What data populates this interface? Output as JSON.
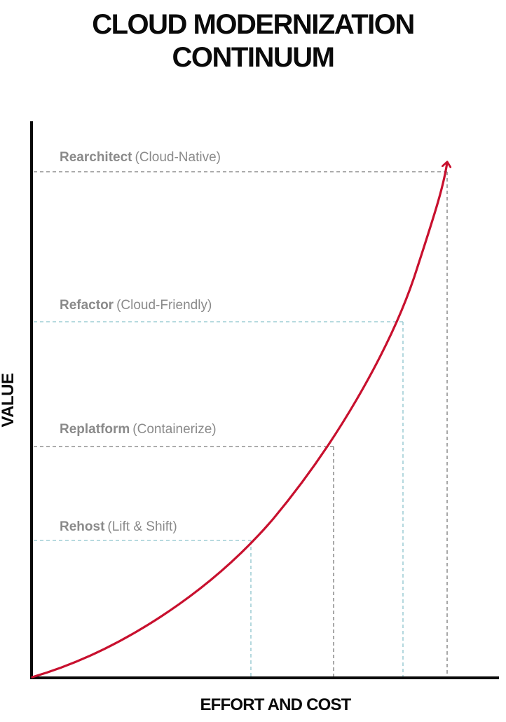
{
  "title": {
    "line1": "CLOUD MODERNIZATION",
    "line2": "CONTINUUM"
  },
  "axes": {
    "x_label": "EFFORT AND COST",
    "y_label": "VALUE"
  },
  "levels": [
    {
      "name": "Rehost",
      "description": "(Lift & Shift)",
      "guide_color": "#8cc4cc"
    },
    {
      "name": "Replatform",
      "description": "(Containerize)",
      "guide_color": "#7a7a7a"
    },
    {
      "name": "Refactor",
      "description": "(Cloud-Friendly)",
      "guide_color": "#8cc4cc"
    },
    {
      "name": "Rearchitect",
      "description": "(Cloud-Native)",
      "guide_color": "#7a7a7a"
    }
  ],
  "colors": {
    "curve": "#c8102e",
    "axis": "#0a0a0a",
    "label": "#8a8a8a"
  }
}
